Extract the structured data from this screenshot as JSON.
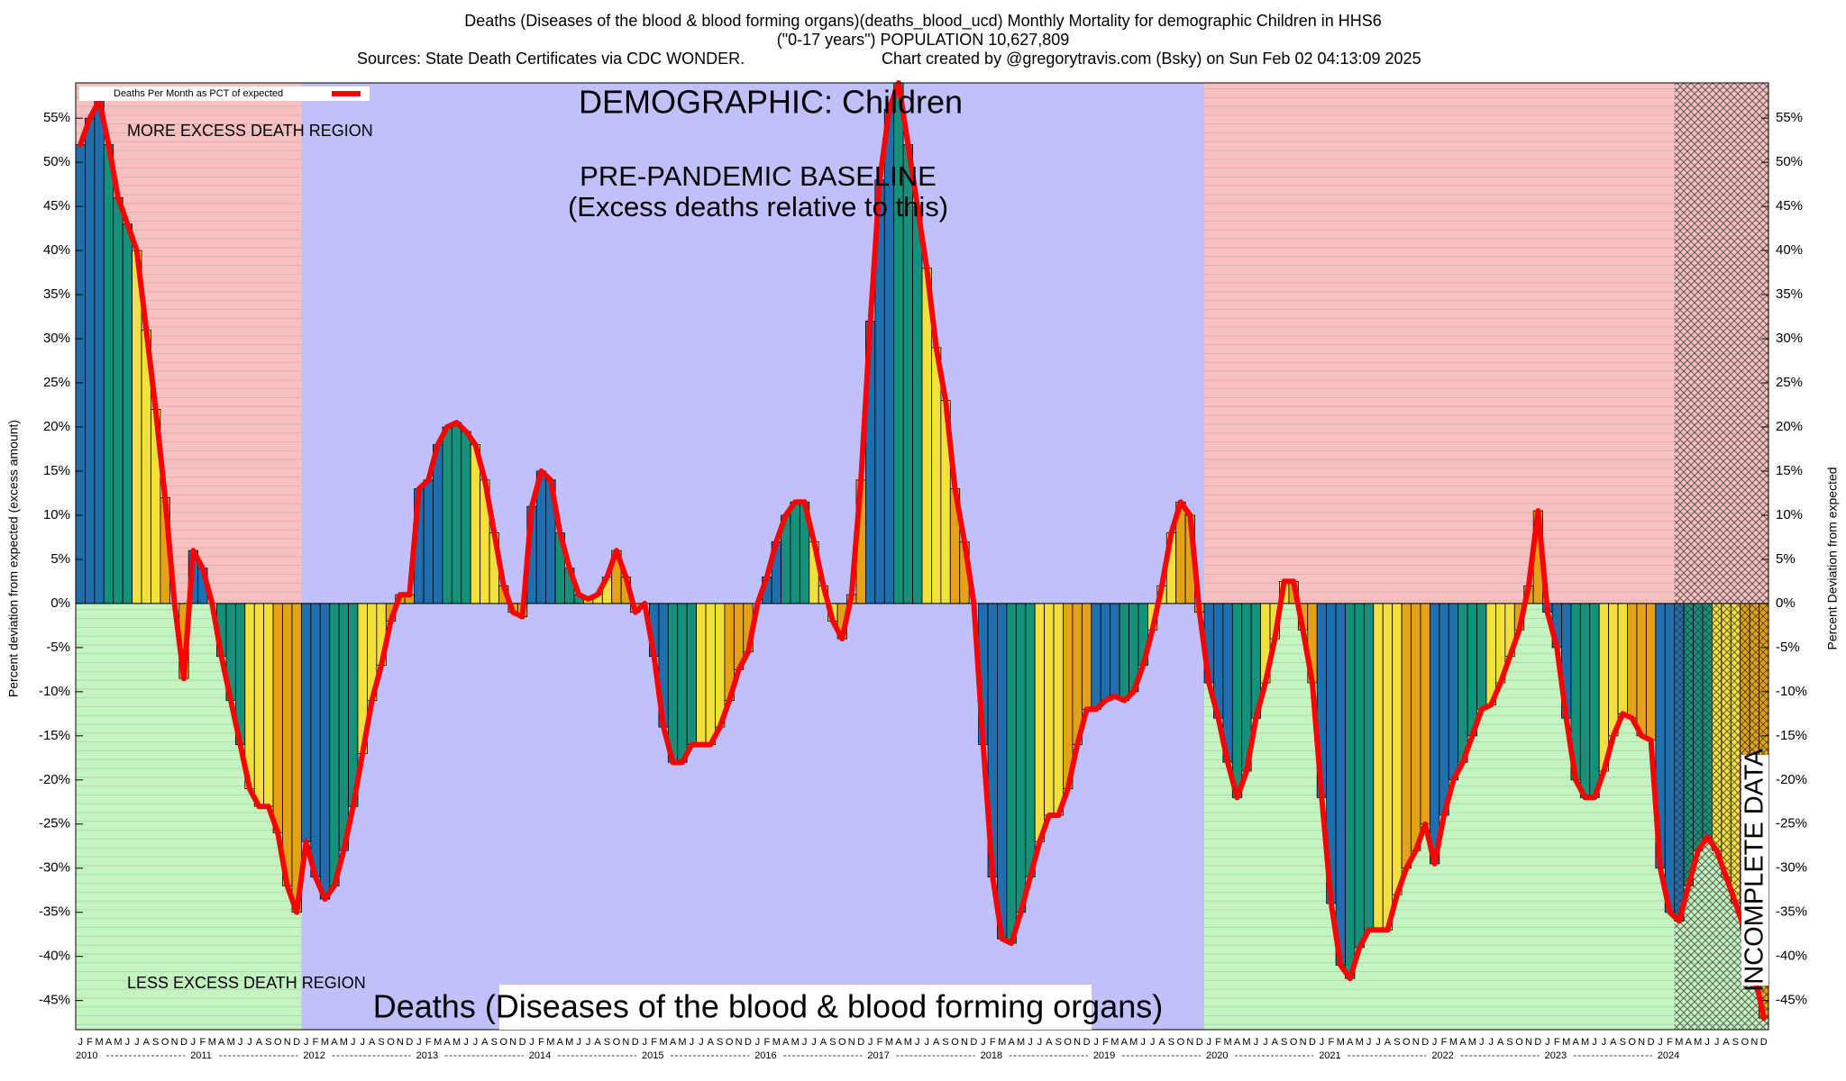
{
  "chart_data": {
    "type": "bar",
    "title": "Deaths (Diseases of the blood & blood forming organs)(deaths_blood_ucd) Monthly Mortality for demographic Children in HHS6",
    "subtitle": "(\"0-17 years\") POPULATION 10,627,809",
    "source": "Sources: State Death Certificates via CDC WONDER.",
    "credit": "Chart created by @gregorytravis.com (Bsky) on Sun Feb 02 04:13:09 2025",
    "y_label": "Percent deviation from expected (excess amount)",
    "y2_label": "Percent Deviation from expected",
    "legend": "Deaths Per Month as PCT of expected",
    "legend_position": "upper left",
    "annotations": {
      "demographic": "DEMOGRAPHIC: Children",
      "baseline": "PRE-PANDEMIC BASELINE",
      "baseline_note": "(Excess deaths relative to this)",
      "more": "MORE EXCESS DEATH REGION",
      "less": "LESS EXCESS DEATH REGION",
      "cause": "Deaths (Diseases of the blood & blood forming organs)",
      "incomplete": "INCOMPLETE DATA"
    },
    "categories": [
      "J",
      "F",
      "M",
      "A",
      "M",
      "J",
      "J",
      "A",
      "S",
      "O",
      "N",
      "D",
      "J",
      "F",
      "M",
      "A",
      "M",
      "J",
      "J",
      "A",
      "S",
      "O",
      "N",
      "D",
      "J",
      "F",
      "M",
      "A",
      "M",
      "J",
      "J",
      "A",
      "S",
      "O",
      "N",
      "D",
      "J",
      "F",
      "M",
      "A",
      "M",
      "J",
      "J",
      "A",
      "S",
      "O",
      "N",
      "D",
      "J",
      "F",
      "M",
      "A",
      "M",
      "J",
      "J",
      "A",
      "S",
      "O",
      "N",
      "D",
      "J",
      "F",
      "M",
      "A",
      "M",
      "J",
      "J",
      "A",
      "S",
      "O",
      "N",
      "D",
      "J",
      "F",
      "M",
      "A",
      "M",
      "J",
      "J",
      "A",
      "S",
      "O",
      "N",
      "D",
      "J",
      "F",
      "M",
      "A",
      "M",
      "J",
      "J",
      "A",
      "S",
      "O",
      "N",
      "D",
      "J",
      "F",
      "M",
      "A",
      "M",
      "J",
      "J",
      "A",
      "S",
      "O",
      "N",
      "D",
      "J",
      "F",
      "M",
      "A",
      "M",
      "J",
      "J",
      "A",
      "S",
      "O",
      "N",
      "D",
      "J",
      "F",
      "M",
      "A",
      "M",
      "J",
      "J",
      "A",
      "S",
      "O",
      "N",
      "D",
      "J",
      "F",
      "M",
      "A",
      "M",
      "J",
      "J",
      "A",
      "S",
      "O",
      "N",
      "D",
      "J",
      "F",
      "M",
      "A",
      "M",
      "J",
      "J",
      "A",
      "S",
      "O",
      "N",
      "D",
      "J",
      "F",
      "M",
      "A",
      "M",
      "J",
      "J",
      "A",
      "S",
      "O",
      "N",
      "D",
      "J",
      "F",
      "M",
      "A",
      "M",
      "J",
      "J",
      "A",
      "S",
      "O",
      "N",
      "D"
    ],
    "years": [
      "2010",
      "2011",
      "2012",
      "2013",
      "2014",
      "2015",
      "2016",
      "2017",
      "2018",
      "2019",
      "2020",
      "2021",
      "2022",
      "2023",
      "2024"
    ],
    "values": [
      52,
      55,
      57,
      52,
      46,
      43,
      40,
      31,
      22,
      12,
      0,
      -8.5,
      6,
      4,
      0,
      -6,
      -11,
      -16,
      -21,
      -23,
      -23,
      -26,
      -32,
      -35,
      -27,
      -31,
      -33.5,
      -32,
      -28,
      -23,
      -17,
      -11,
      -7,
      -2,
      1,
      1,
      13,
      14,
      18,
      20,
      20.5,
      19.5,
      18,
      14,
      8,
      2,
      -1,
      -1.5,
      11,
      15,
      14,
      8,
      4,
      1,
      0.5,
      1,
      3,
      6,
      3,
      -1,
      0,
      -6,
      -14,
      -18,
      -18,
      -16,
      -16,
      -16,
      -14,
      -11,
      -7.5,
      -5.5,
      0,
      3,
      7,
      10,
      11.5,
      11.5,
      7,
      2,
      -2,
      -4,
      1,
      14,
      32,
      48,
      56,
      59,
      52,
      45,
      38,
      29,
      23,
      13,
      7,
      0,
      -16,
      -31,
      -38,
      -38.5,
      -35,
      -31,
      -27,
      -24,
      -24,
      -21,
      -16,
      -12,
      -12,
      -11,
      -10.5,
      -11,
      -10,
      -7,
      -3,
      2,
      8,
      11.5,
      10,
      -1,
      -9,
      -13,
      -18,
      -22,
      -19,
      -13,
      -9,
      -4,
      2.5,
      2.5,
      -3,
      -9,
      -22,
      -34,
      -41,
      -42.5,
      -39,
      -37,
      -37,
      -37,
      -33,
      -30,
      -28,
      -25,
      -29.5,
      -24,
      -20,
      -18,
      -15,
      -12,
      -11.5,
      -9,
      -6,
      -3,
      2,
      10.5,
      -1,
      -5,
      -13,
      -20,
      -22,
      -22,
      -19,
      -15,
      -12.5,
      -13,
      -15,
      -15.5,
      -30,
      -35,
      -36,
      -32,
      -28,
      -26.5,
      -28,
      -31,
      -34,
      -37,
      -42,
      -47
    ],
    "season_colors": [
      "#1f6fae",
      "#15907a",
      "#f2e13c",
      "#e3a217"
    ],
    "line_color": "#ff0000",
    "ylim": [
      -48.3,
      59
    ],
    "yticks": [
      {
        "value": -45,
        "label": "-45%"
      },
      {
        "value": -40,
        "label": "-40%"
      },
      {
        "value": -35,
        "label": "-35%"
      },
      {
        "value": -30,
        "label": "-30%"
      },
      {
        "value": -25,
        "label": "-25%"
      },
      {
        "value": -20,
        "label": "-20%"
      },
      {
        "value": -15,
        "label": "-15%"
      },
      {
        "value": -10,
        "label": "-10%"
      },
      {
        "value": -5,
        "label": "-5%"
      },
      {
        "value": 0,
        "label": "0%"
      },
      {
        "value": 5,
        "label": "5%"
      },
      {
        "value": 10,
        "label": "10%"
      },
      {
        "value": 15,
        "label": "15%"
      },
      {
        "value": 20,
        "label": "20%"
      },
      {
        "value": 25,
        "label": "25%"
      },
      {
        "value": 30,
        "label": "30%"
      },
      {
        "value": 35,
        "label": "35%"
      },
      {
        "value": 40,
        "label": "40%"
      },
      {
        "value": 45,
        "label": "45%"
      },
      {
        "value": 50,
        "label": "50%"
      },
      {
        "value": 55,
        "label": "55%"
      }
    ]
  }
}
